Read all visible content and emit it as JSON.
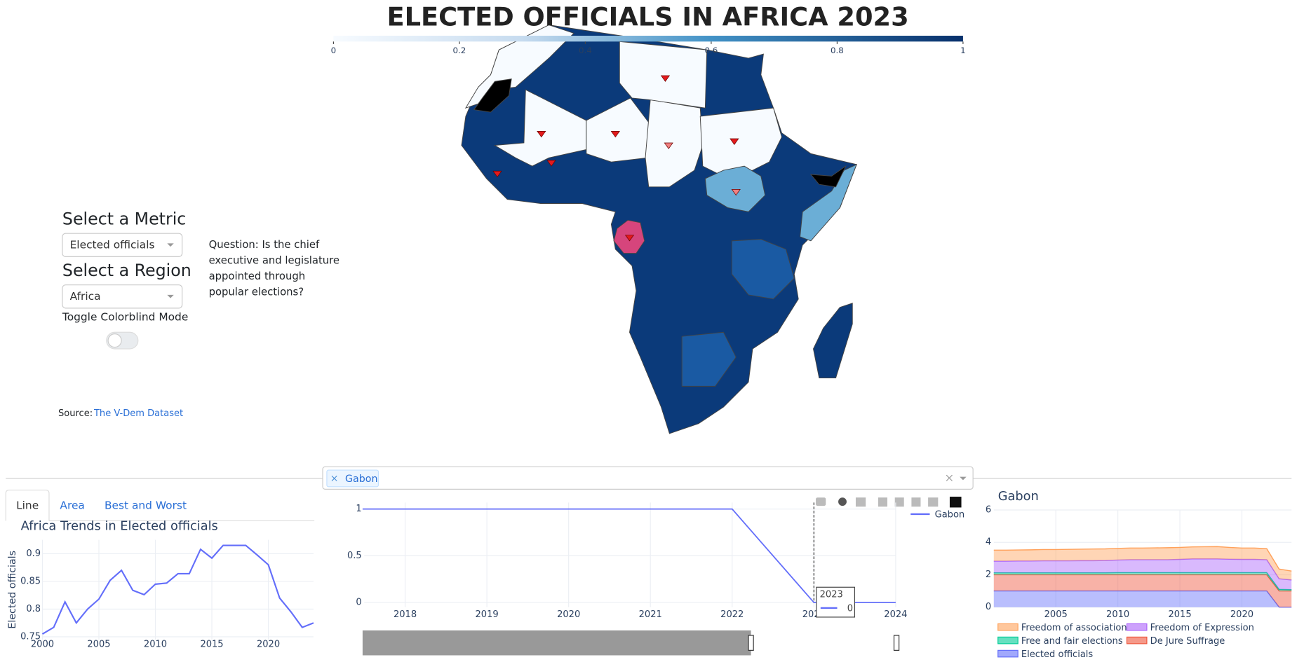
{
  "title": "ELECTED OFFICIALS IN AFRICA 2023",
  "colorbar": {
    "range": [
      0,
      1
    ],
    "ticks": [
      0,
      0.2,
      0.4,
      0.6,
      0.8,
      1
    ]
  },
  "controls": {
    "metric_label": "Select a Metric",
    "metric_value": "Elected officials",
    "region_label": "Select a Region",
    "region_value": "Africa",
    "toggle_label": "Toggle Colorblind Mode",
    "question_lines": [
      "Question: Is the chief",
      "executive and legislature",
      "appointed through",
      "popular elections?"
    ]
  },
  "source": {
    "label": "Source:",
    "link": "The V-Dem Dataset"
  },
  "tabs": [
    "Line",
    "Area",
    "Best and Worst"
  ],
  "trend_chart": {
    "type": "line",
    "title": "Africa Trends in Elected officials",
    "y_label": "Elected officials",
    "color": "#636efa",
    "x": [
      2000,
      2001,
      2002,
      2003,
      2004,
      2005,
      2006,
      2007,
      2008,
      2009,
      2010,
      2011,
      2012,
      2013,
      2014,
      2015,
      2016,
      2017,
      2018,
      2019,
      2020,
      2021,
      2022,
      2023,
      2024
    ],
    "values": [
      0.755,
      0.767,
      0.813,
      0.775,
      0.8,
      0.818,
      0.852,
      0.87,
      0.834,
      0.826,
      0.845,
      0.847,
      0.864,
      0.864,
      0.908,
      0.892,
      0.915,
      0.915,
      0.915,
      0.898,
      0.88,
      0.82,
      0.795,
      0.767,
      0.775
    ],
    "xlim": [
      2000,
      2024
    ],
    "ylim": [
      0.745,
      0.925
    ],
    "xticks": [
      2000,
      2005,
      2010,
      2015,
      2020
    ],
    "yticks": [
      0.75,
      0.8,
      0.85,
      0.9
    ]
  },
  "country_selector": {
    "selected": [
      "Gabon"
    ]
  },
  "country_chart": {
    "type": "line",
    "x": [
      2017,
      2018,
      2019,
      2020,
      2021,
      2022,
      2023,
      2024
    ],
    "series": [
      {
        "name": "Gabon",
        "color": "#636efa",
        "values": [
          1,
          1,
          1,
          1,
          1,
          1,
          0,
          0
        ]
      }
    ],
    "xlim": [
      2017.5,
      2024
    ],
    "ylim": [
      -0.05,
      1.07
    ],
    "xticks": [
      2018,
      2019,
      2020,
      2021,
      2022,
      2023,
      2024
    ],
    "yticks": [
      0,
      0.5,
      1
    ],
    "hover": {
      "x": 2023,
      "value": 0
    }
  },
  "area_chart": {
    "type": "area",
    "title": "Gabon",
    "x": [
      2000,
      2001,
      2002,
      2003,
      2004,
      2005,
      2006,
      2007,
      2008,
      2009,
      2010,
      2011,
      2012,
      2013,
      2014,
      2015,
      2016,
      2017,
      2018,
      2019,
      2020,
      2021,
      2022,
      2023,
      2024
    ],
    "series": [
      {
        "name": "Elected officials",
        "color": "#636efa",
        "values": [
          1,
          1,
          1,
          1,
          1,
          1,
          1,
          1,
          1,
          1,
          1,
          1,
          1,
          1,
          1,
          1,
          1,
          1,
          1,
          1,
          1,
          1,
          1,
          0,
          0
        ]
      },
      {
        "name": "De Jure Suffrage",
        "color": "#ef553b",
        "values": [
          1,
          1,
          1,
          1,
          1,
          1,
          1,
          1,
          1,
          1,
          1,
          1,
          1,
          1,
          1,
          1,
          1,
          1,
          1,
          1,
          1,
          1,
          1,
          1,
          1
        ]
      },
      {
        "name": "Free and fair elections",
        "color": "#00cc96",
        "values": [
          0.12,
          0.12,
          0.12,
          0.12,
          0.12,
          0.12,
          0.12,
          0.12,
          0.12,
          0.12,
          0.13,
          0.13,
          0.13,
          0.13,
          0.13,
          0.13,
          0.13,
          0.13,
          0.13,
          0.13,
          0.13,
          0.13,
          0.13,
          0.1,
          0.08
        ]
      },
      {
        "name": "Freedom of Expression",
        "color": "#ab63fa",
        "values": [
          0.72,
          0.72,
          0.73,
          0.73,
          0.74,
          0.74,
          0.74,
          0.75,
          0.75,
          0.76,
          0.78,
          0.8,
          0.8,
          0.8,
          0.8,
          0.82,
          0.85,
          0.85,
          0.85,
          0.83,
          0.82,
          0.82,
          0.8,
          0.65,
          0.6
        ]
      },
      {
        "name": "Freedom of association",
        "color": "#ffa15a",
        "values": [
          0.68,
          0.68,
          0.68,
          0.69,
          0.7,
          0.7,
          0.71,
          0.71,
          0.72,
          0.72,
          0.72,
          0.72,
          0.72,
          0.73,
          0.74,
          0.74,
          0.74,
          0.75,
          0.76,
          0.73,
          0.7,
          0.7,
          0.68,
          0.6,
          0.55
        ]
      }
    ],
    "xlim": [
      2000,
      2024
    ],
    "ylim": [
      0,
      6
    ],
    "xticks": [
      2005,
      2010,
      2015,
      2020
    ],
    "yticks": [
      0,
      2,
      4,
      6
    ]
  }
}
